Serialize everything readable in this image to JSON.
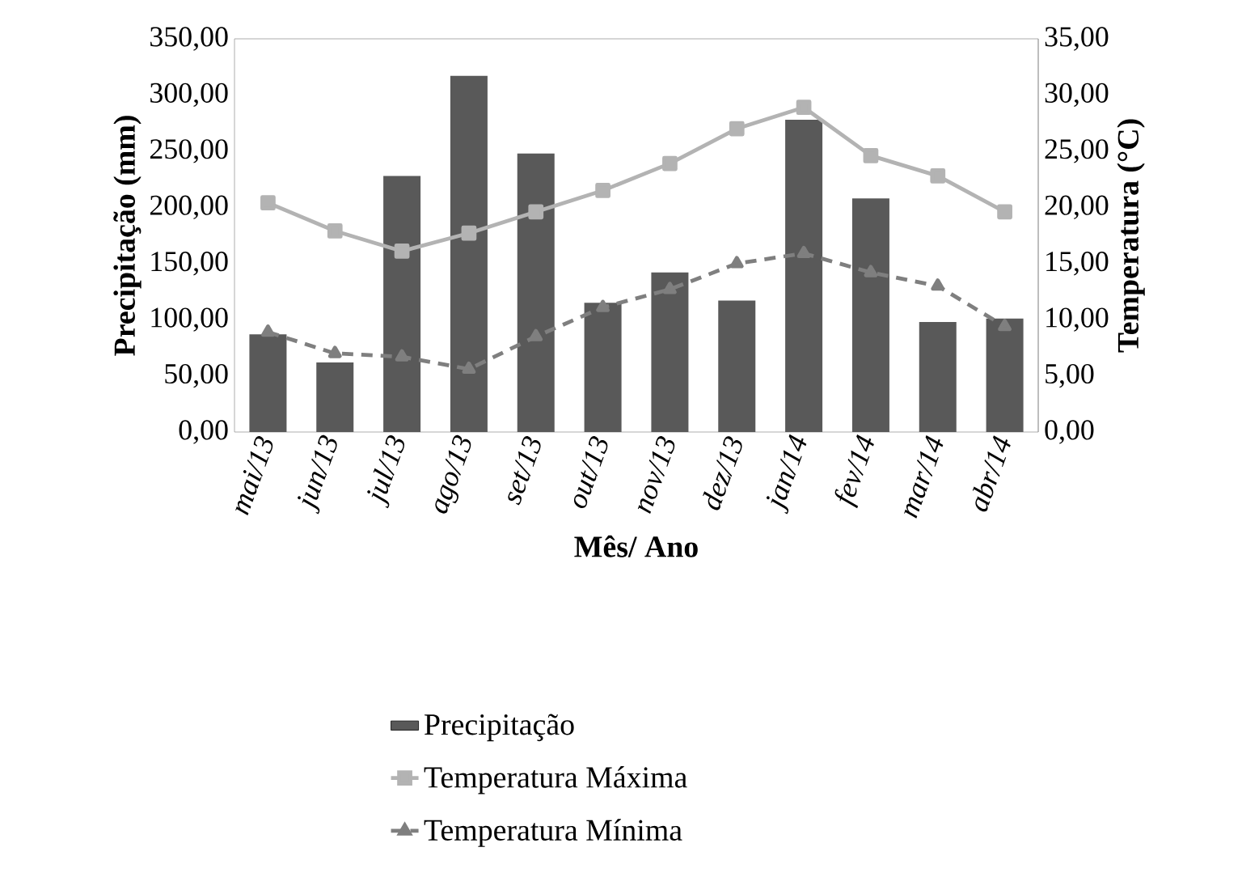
{
  "chart_data": {
    "type": "bar",
    "categories": [
      "mai/13",
      "jun/13",
      "jul/13",
      "ago/13",
      "set/13",
      "out/13",
      "nov/13",
      "dez/13",
      "jan/14",
      "fev/14",
      "mar/14",
      "abr/14"
    ],
    "xlabel": "Mês/ Ano",
    "ylabel": "Precipitação (mm)",
    "y2label": "Temperatura (°C)",
    "ylim": [
      0,
      350
    ],
    "yticks": [
      {
        "value": 0,
        "label": "0,00"
      },
      {
        "value": 50,
        "label": "50,00"
      },
      {
        "value": 100,
        "label": "100,00"
      },
      {
        "value": 150,
        "label": "150,00"
      },
      {
        "value": 200,
        "label": "200,00"
      },
      {
        "value": 250,
        "label": "250,00"
      },
      {
        "value": 300,
        "label": "300,00"
      },
      {
        "value": 350,
        "label": "350,00"
      }
    ],
    "y2lim": [
      0,
      35
    ],
    "y2ticks": [
      {
        "value": 0,
        "label": "0,00"
      },
      {
        "value": 5,
        "label": "5,00"
      },
      {
        "value": 10,
        "label": "10,00"
      },
      {
        "value": 15,
        "label": "15,00"
      },
      {
        "value": 20,
        "label": "20,00"
      },
      {
        "value": 25,
        "label": "25,00"
      },
      {
        "value": 30,
        "label": "30,00"
      },
      {
        "value": 35,
        "label": "35,00"
      }
    ],
    "legend": "bottom",
    "grid": false,
    "series": [
      {
        "name": "Precipitação",
        "color": "#595959",
        "values": [
          87,
          62,
          228,
          317,
          248,
          115,
          142,
          117,
          278,
          208,
          98,
          101
        ]
      },
      {
        "name": "Temperatura Máxima",
        "type": "line",
        "axis": "y2",
        "color": "#b3b3b3",
        "marker": "square",
        "line_style": "solid",
        "values": [
          20.4,
          17.9,
          16.1,
          17.7,
          19.6,
          21.5,
          23.9,
          27.0,
          28.9,
          24.6,
          22.8,
          19.6
        ]
      },
      {
        "name": "Temperatura Mínima",
        "type": "line",
        "axis": "y2",
        "color": "#7f7f7f",
        "marker": "triangle",
        "line_style": "dashed",
        "values": [
          8.9,
          7.0,
          6.7,
          5.6,
          8.5,
          11.1,
          12.7,
          15.0,
          15.9,
          14.2,
          13.0,
          9.4
        ]
      }
    ]
  }
}
